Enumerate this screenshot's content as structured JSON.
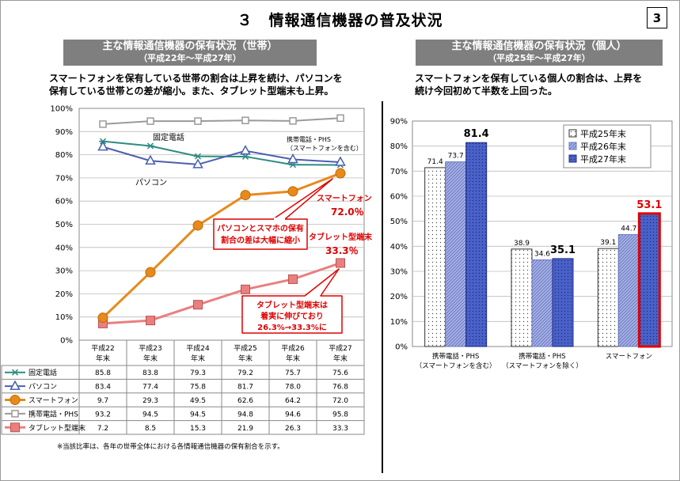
{
  "page": {
    "title": "３　情報通信機器の普及状況",
    "page_number": "3",
    "note": "※当該比率は、各年の世帯全体における各情報通信機器の保有割合を示す。"
  },
  "left_panel": {
    "banner_line1": "主な情報通信機器の保有状況（世帯）",
    "banner_line2": "（平成22年～平成27年）",
    "description_line1": "スマートフォンを保有している世帯の割合は上昇を続け、パソコンを",
    "description_line2": "保有している世帯との差が縮小。また、タブレット型端末も上昇。",
    "line_labels": {
      "fixed": "固定電話",
      "pc": "パソコン",
      "mobile_line1": "携帯電話・PHS",
      "mobile_line2": "（スマートフォンを含む）",
      "smartphone": "スマートフォン",
      "smartphone_value": "72.0％",
      "tablet": "タブレット型端末",
      "tablet_value": "33.3％"
    },
    "callout1_line1": "パソコンとスマホの保有",
    "callout1_line2": "割合の差は大幅に縮小",
    "callout2_line1": "タブレット型端末は",
    "callout2_line2": "着実に伸びており",
    "callout2_line3": "26.3%→33.3%に",
    "colors": {
      "fixed": "#2e8b82",
      "pc": "#4a5fb0",
      "smartphone": "#e8891c",
      "mobile": "#9a9a9a",
      "tablet": "#e88080",
      "callout_red": "#e00000"
    }
  },
  "right_panel": {
    "banner_line1": "主な情報通信機器の保有状況（個人）",
    "banner_line2": "（平成25年～平成27年）",
    "description_line1": "スマートフォンを保有している個人の割合は、上昇を",
    "description_line2": "続け今回初めて半数を上回った。"
  },
  "chart_data": [
    {
      "type": "line",
      "ylim": [
        0,
        100
      ],
      "y_ticks": [
        "0%",
        "10%",
        "20%",
        "30%",
        "40%",
        "50%",
        "60%",
        "70%",
        "80%",
        "90%",
        "100%"
      ],
      "grid": true,
      "x": [
        "平成22年末",
        "平成23年末",
        "平成24年末",
        "平成25年末",
        "平成26年末",
        "平成27年末"
      ],
      "x_line1": [
        "平成22",
        "平成23",
        "平成24",
        "平成25",
        "平成26",
        "平成27"
      ],
      "x_line2": [
        "年末",
        "年末",
        "年末",
        "年末",
        "年末",
        "年末"
      ],
      "series": [
        {
          "key": "fixed",
          "name": "固定電話",
          "values": [
            85.8,
            83.8,
            79.3,
            79.2,
            75.7,
            75.6
          ]
        },
        {
          "key": "pc",
          "name": "パソコン",
          "values": [
            83.4,
            77.4,
            75.8,
            81.7,
            78.0,
            76.8
          ]
        },
        {
          "key": "smartphone",
          "name": "スマートフォン",
          "values": [
            9.7,
            29.3,
            49.5,
            62.6,
            64.2,
            72.0
          ]
        },
        {
          "key": "mobile",
          "name": "携帯電話・PHS",
          "values": [
            93.2,
            94.5,
            94.5,
            94.8,
            94.6,
            95.8
          ]
        },
        {
          "key": "tablet",
          "name": "タブレット型端末",
          "values": [
            7.2,
            8.5,
            15.3,
            21.9,
            26.3,
            33.3
          ]
        }
      ],
      "table": [
        [
          "85.8",
          "83.8",
          "79.3",
          "79.2",
          "75.7",
          "75.6"
        ],
        [
          "83.4",
          "77.4",
          "75.8",
          "81.7",
          "78.0",
          "76.8"
        ],
        [
          "9.7",
          "29.3",
          "49.5",
          "62.6",
          "64.2",
          "72.0"
        ],
        [
          "93.2",
          "94.5",
          "94.5",
          "94.8",
          "94.6",
          "95.8"
        ],
        [
          "7.2",
          "8.5",
          "15.3",
          "21.9",
          "26.3",
          "33.3"
        ]
      ]
    },
    {
      "type": "bar",
      "ylim": [
        0,
        90
      ],
      "y_ticks": [
        "0%",
        "10%",
        "20%",
        "30%",
        "40%",
        "50%",
        "60%",
        "70%",
        "80%",
        "90%"
      ],
      "categories_line1": [
        "携帯電話・PHS",
        "携帯電話・PHS",
        "スマートフォン"
      ],
      "categories_line2": [
        "（スマートフォンを含む）",
        "（スマートフォンを除く）",
        ""
      ],
      "legend_position": "top-right",
      "series": [
        {
          "name": "平成25年末",
          "values": [
            71.4,
            38.9,
            39.1
          ],
          "labels": [
            "71.4",
            "38.9",
            "39.1"
          ]
        },
        {
          "name": "平成26年末",
          "values": [
            73.7,
            34.6,
            44.7
          ],
          "labels": [
            "73.7",
            "34.6",
            "44.7"
          ]
        },
        {
          "name": "平成27年末",
          "values": [
            81.4,
            35.1,
            53.1
          ],
          "labels": [
            "81.4",
            "35.1",
            "53.1"
          ]
        }
      ]
    }
  ]
}
